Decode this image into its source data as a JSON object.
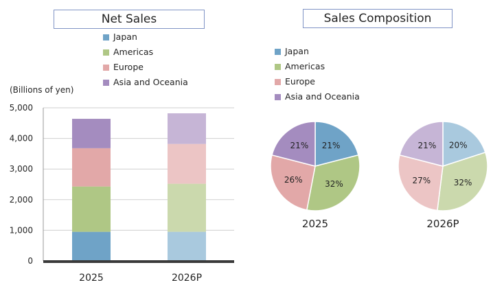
{
  "charts": {
    "net_sales_title": "Net Sales",
    "composition_title": "Sales Composition",
    "unit_label": "(Billions  of  yen)"
  },
  "legend": [
    "Japan",
    "Americas",
    "Europe",
    "Asia and Oceania"
  ],
  "colors": {
    "solid": [
      "#6fa3c7",
      "#afc785",
      "#e2a8a8",
      "#a48cbf"
    ],
    "light": [
      "#a9c9de",
      "#cbd9ad",
      "#ecc5c5",
      "#c6b5d6"
    ]
  },
  "chart_data": [
    {
      "type": "bar",
      "stacked": true,
      "title": "Net Sales",
      "ylabel": "(Billions  of  yen)",
      "categories": [
        "2025",
        "2026P"
      ],
      "series": [
        {
          "name": "Japan",
          "values": [
            950,
            950
          ]
        },
        {
          "name": "Americas",
          "values": [
            1480,
            1570
          ]
        },
        {
          "name": "Europe",
          "values": [
            1250,
            1300
          ]
        },
        {
          "name": "Asia and Oceania",
          "values": [
            960,
            1000
          ]
        }
      ],
      "ylim": [
        0,
        5000
      ],
      "yticks": [
        "0",
        "1,000",
        "2,000",
        "3,000",
        "4,000",
        "5,000"
      ],
      "grid": true
    },
    {
      "type": "pie",
      "title": "Sales Composition",
      "pies": [
        {
          "label": "2025",
          "slices": [
            {
              "name": "Japan",
              "value": 21,
              "label": "21%"
            },
            {
              "name": "Americas",
              "value": 32,
              "label": "32%"
            },
            {
              "name": "Europe",
              "value": 26,
              "label": "26%"
            },
            {
              "name": "Asia and Oceania",
              "value": 21,
              "label": "21%"
            }
          ]
        },
        {
          "label": "2026P",
          "slices": [
            {
              "name": "Japan",
              "value": 20,
              "label": "20%"
            },
            {
              "name": "Americas",
              "value": 32,
              "label": "32%"
            },
            {
              "name": "Europe",
              "value": 27,
              "label": "27%"
            },
            {
              "name": "Asia and Oceania",
              "value": 21,
              "label": "21%"
            }
          ]
        }
      ]
    }
  ]
}
